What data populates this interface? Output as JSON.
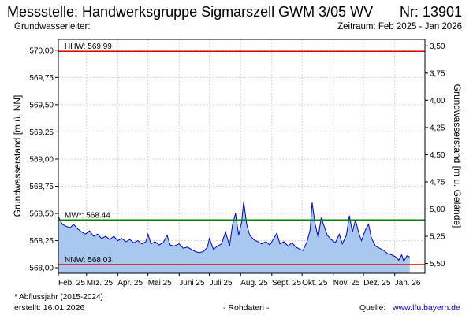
{
  "header": {
    "title": "Messstelle: Handwerksgruppe Sigmarszell GWM 3/05 WV",
    "number": "Nr: 13901",
    "aquifer_label": "Grundwasserleiter:",
    "period": "Zeitraum: Feb 2025 - Jan 2026"
  },
  "footer": {
    "footnote": "* Abflussjahr (2015-2024)",
    "created": "erstellt:  16.01.2026",
    "raw_data": "- Rohdaten -",
    "source_label": "Quelle:",
    "source_url": "www.lfu.bayern.de"
  },
  "chart_data": {
    "type": "area",
    "title": "",
    "xlabel": "",
    "ylabel": "Grundwasserstand [m ü. NN]",
    "y2label": "Grundwasserstand [m u. Gelände]",
    "ylim": [
      567.95,
      570.1
    ],
    "y2lim": [
      5.59,
      3.44
    ],
    "yticks": [
      568.0,
      568.25,
      568.5,
      568.75,
      569.0,
      569.25,
      569.5,
      569.75,
      570.0
    ],
    "ytick_labels": [
      "568,00",
      "568,25",
      "568,50",
      "568,75",
      "569,00",
      "569,25",
      "569,50",
      "569,75",
      "570,00"
    ],
    "y2ticks": [
      3.5,
      3.75,
      4.0,
      4.25,
      4.5,
      4.75,
      5.0,
      5.25,
      5.5
    ],
    "y2tick_labels": [
      "3,50",
      "3,75",
      "4,00",
      "4,25",
      "4,50",
      "4,75",
      "5,00",
      "5,25",
      "5,50"
    ],
    "xlim": [
      "2025-02-01",
      "2026-01-31"
    ],
    "x_tick_dates": [
      "2025-02-01",
      "2025-03-01",
      "2025-04-01",
      "2025-05-01",
      "2025-06-01",
      "2025-07-01",
      "2025-08-01",
      "2025-09-01",
      "2025-10-01",
      "2025-11-01",
      "2025-12-01",
      "2026-01-01"
    ],
    "x_tick_labels": [
      "Feb. 25",
      "Mrz. 25",
      "Apr. 25",
      "Mai 25",
      "Juni 25",
      "Juli 25",
      "Aug. 25",
      "Sept. 25",
      "Okt. 25",
      "Nov. 25",
      "Dez. 25",
      "Jan. 26"
    ],
    "grid": true,
    "reference_lines": [
      {
        "label": "HHW: 569.99",
        "value": 569.99,
        "color": "#e00000"
      },
      {
        "label": "MW*: 568.44",
        "value": 568.44,
        "color": "#008000"
      },
      {
        "label": "NNW: 568.03",
        "value": 568.03,
        "color": "#e00000"
      }
    ],
    "series": [
      {
        "line_color": "#0000cc",
        "fill_color": "#a8c8f0",
        "points": [
          [
            "2025-02-01",
            568.47
          ],
          [
            "2025-02-05",
            568.4
          ],
          [
            "2025-02-09",
            568.38
          ],
          [
            "2025-02-13",
            568.37
          ],
          [
            "2025-02-16",
            568.4
          ],
          [
            "2025-02-20",
            568.36
          ],
          [
            "2025-02-24",
            568.33
          ],
          [
            "2025-02-28",
            568.31
          ],
          [
            "2025-03-04",
            568.34
          ],
          [
            "2025-03-08",
            568.29
          ],
          [
            "2025-03-12",
            568.31
          ],
          [
            "2025-03-16",
            568.27
          ],
          [
            "2025-03-20",
            568.29
          ],
          [
            "2025-03-24",
            568.26
          ],
          [
            "2025-03-28",
            568.29
          ],
          [
            "2025-04-01",
            568.25
          ],
          [
            "2025-04-05",
            568.27
          ],
          [
            "2025-04-09",
            568.24
          ],
          [
            "2025-04-13",
            568.26
          ],
          [
            "2025-04-17",
            568.23
          ],
          [
            "2025-04-21",
            568.25
          ],
          [
            "2025-04-25",
            568.22
          ],
          [
            "2025-04-29",
            568.24
          ],
          [
            "2025-05-01",
            568.31
          ],
          [
            "2025-05-04",
            568.22
          ],
          [
            "2025-05-08",
            568.24
          ],
          [
            "2025-05-12",
            568.21
          ],
          [
            "2025-05-16",
            568.23
          ],
          [
            "2025-05-20",
            568.3
          ],
          [
            "2025-05-23",
            568.21
          ],
          [
            "2025-05-27",
            568.2
          ],
          [
            "2025-06-01",
            568.22
          ],
          [
            "2025-06-05",
            568.18
          ],
          [
            "2025-06-09",
            568.19
          ],
          [
            "2025-06-13",
            568.17
          ],
          [
            "2025-06-17",
            568.15
          ],
          [
            "2025-06-21",
            568.14
          ],
          [
            "2025-06-25",
            568.15
          ],
          [
            "2025-06-29",
            568.19
          ],
          [
            "2025-07-01",
            568.27
          ],
          [
            "2025-07-05",
            568.17
          ],
          [
            "2025-07-09",
            568.2
          ],
          [
            "2025-07-13",
            568.22
          ],
          [
            "2025-07-17",
            568.33
          ],
          [
            "2025-07-21",
            568.2
          ],
          [
            "2025-07-24",
            568.4
          ],
          [
            "2025-07-27",
            568.5
          ],
          [
            "2025-07-30",
            568.3
          ],
          [
            "2025-08-02",
            568.42
          ],
          [
            "2025-08-04",
            568.61
          ],
          [
            "2025-08-07",
            568.4
          ],
          [
            "2025-08-10",
            568.3
          ],
          [
            "2025-08-14",
            568.26
          ],
          [
            "2025-08-18",
            568.24
          ],
          [
            "2025-08-22",
            568.22
          ],
          [
            "2025-08-26",
            568.24
          ],
          [
            "2025-08-30",
            568.21
          ],
          [
            "2025-09-03",
            568.27
          ],
          [
            "2025-09-06",
            568.32
          ],
          [
            "2025-09-09",
            568.22
          ],
          [
            "2025-09-13",
            568.24
          ],
          [
            "2025-09-17",
            568.2
          ],
          [
            "2025-09-21",
            568.23
          ],
          [
            "2025-09-25",
            568.19
          ],
          [
            "2025-09-29",
            568.17
          ],
          [
            "2025-10-02",
            568.16
          ],
          [
            "2025-10-06",
            568.24
          ],
          [
            "2025-10-09",
            568.35
          ],
          [
            "2025-10-11",
            568.6
          ],
          [
            "2025-10-14",
            568.4
          ],
          [
            "2025-10-17",
            568.28
          ],
          [
            "2025-10-20",
            568.46
          ],
          [
            "2025-10-23",
            568.38
          ],
          [
            "2025-10-26",
            568.3
          ],
          [
            "2025-10-30",
            568.26
          ],
          [
            "2025-11-03",
            568.23
          ],
          [
            "2025-11-07",
            568.31
          ],
          [
            "2025-11-10",
            568.22
          ],
          [
            "2025-11-14",
            568.3
          ],
          [
            "2025-11-17",
            568.48
          ],
          [
            "2025-11-20",
            568.33
          ],
          [
            "2025-11-23",
            568.44
          ],
          [
            "2025-11-26",
            568.33
          ],
          [
            "2025-11-29",
            568.25
          ],
          [
            "2025-12-03",
            568.35
          ],
          [
            "2025-12-06",
            568.4
          ],
          [
            "2025-12-09",
            568.27
          ],
          [
            "2025-12-13",
            568.2
          ],
          [
            "2025-12-17",
            568.18
          ],
          [
            "2025-12-21",
            568.16
          ],
          [
            "2025-12-25",
            568.13
          ],
          [
            "2025-12-29",
            568.12
          ],
          [
            "2026-01-02",
            568.1
          ],
          [
            "2026-01-05",
            568.07
          ],
          [
            "2026-01-08",
            568.12
          ],
          [
            "2026-01-10",
            568.06
          ],
          [
            "2026-01-13",
            568.11
          ],
          [
            "2026-01-16",
            568.1
          ]
        ]
      }
    ]
  }
}
